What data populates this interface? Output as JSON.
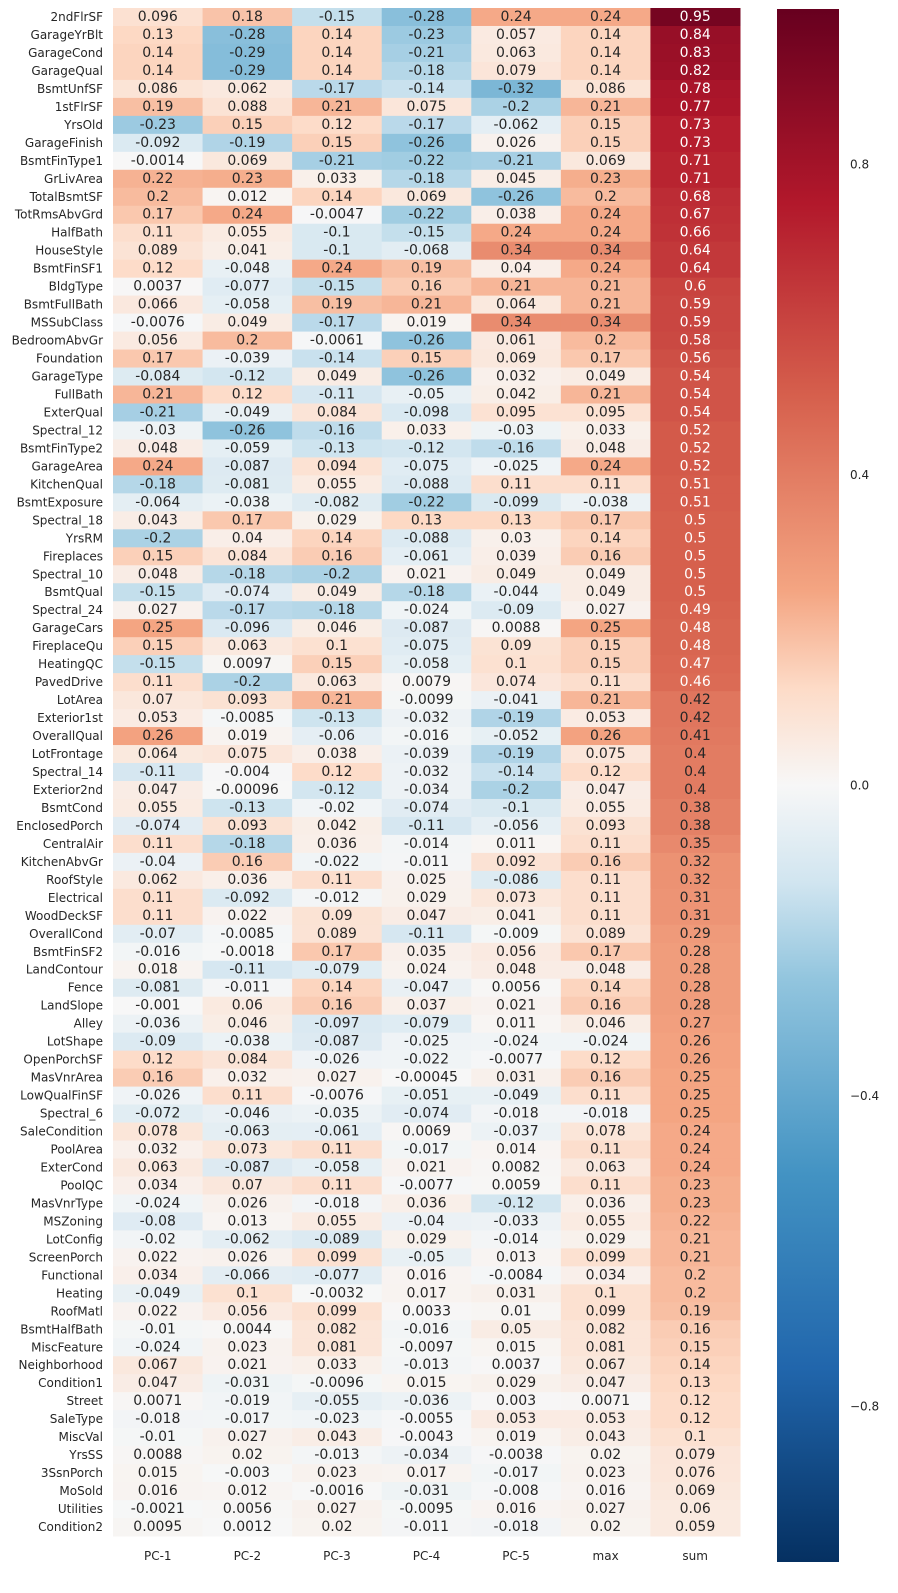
{
  "chart_data": {
    "type": "heatmap",
    "title": "",
    "xlabel": "",
    "ylabel": "",
    "columns": [
      "PC-1",
      "PC-2",
      "PC-3",
      "PC-4",
      "PC-5",
      "max",
      "sum"
    ],
    "rows": [
      {
        "label": "2ndFlrSF",
        "values": [
          "0.096",
          "0.18",
          "-0.15",
          "-0.28",
          "0.24",
          "0.24",
          "0.95"
        ]
      },
      {
        "label": "GarageYrBlt",
        "values": [
          "0.13",
          "-0.28",
          "0.14",
          "-0.23",
          "0.057",
          "0.14",
          "0.84"
        ]
      },
      {
        "label": "GarageCond",
        "values": [
          "0.14",
          "-0.29",
          "0.14",
          "-0.21",
          "0.063",
          "0.14",
          "0.83"
        ]
      },
      {
        "label": "GarageQual",
        "values": [
          "0.14",
          "-0.29",
          "0.14",
          "-0.18",
          "0.079",
          "0.14",
          "0.82"
        ]
      },
      {
        "label": "BsmtUnfSF",
        "values": [
          "0.086",
          "0.062",
          "-0.17",
          "-0.14",
          "-0.32",
          "0.086",
          "0.78"
        ]
      },
      {
        "label": "1stFlrSF",
        "values": [
          "0.19",
          "0.088",
          "0.21",
          "0.075",
          "-0.2",
          "0.21",
          "0.77"
        ]
      },
      {
        "label": "YrsOld",
        "values": [
          "-0.23",
          "0.15",
          "0.12",
          "-0.17",
          "-0.062",
          "0.15",
          "0.73"
        ]
      },
      {
        "label": "GarageFinish",
        "values": [
          "-0.092",
          "-0.19",
          "0.15",
          "-0.26",
          "0.026",
          "0.15",
          "0.73"
        ]
      },
      {
        "label": "BsmtFinType1",
        "values": [
          "-0.0014",
          "0.069",
          "-0.21",
          "-0.22",
          "-0.21",
          "0.069",
          "0.71"
        ]
      },
      {
        "label": "GrLivArea",
        "values": [
          "0.22",
          "0.23",
          "0.033",
          "-0.18",
          "0.045",
          "0.23",
          "0.71"
        ]
      },
      {
        "label": "TotalBsmtSF",
        "values": [
          "0.2",
          "0.012",
          "0.14",
          "0.069",
          "-0.26",
          "0.2",
          "0.68"
        ]
      },
      {
        "label": "TotRmsAbvGrd",
        "values": [
          "0.17",
          "0.24",
          "-0.0047",
          "-0.22",
          "0.038",
          "0.24",
          "0.67"
        ]
      },
      {
        "label": "HalfBath",
        "values": [
          "0.11",
          "0.055",
          "-0.1",
          "-0.15",
          "0.24",
          "0.24",
          "0.66"
        ]
      },
      {
        "label": "HouseStyle",
        "values": [
          "0.089",
          "0.041",
          "-0.1",
          "-0.068",
          "0.34",
          "0.34",
          "0.64"
        ]
      },
      {
        "label": "BsmtFinSF1",
        "values": [
          "0.12",
          "-0.048",
          "0.24",
          "0.19",
          "0.04",
          "0.24",
          "0.64"
        ]
      },
      {
        "label": "BldgType",
        "values": [
          "0.0037",
          "-0.077",
          "-0.15",
          "0.16",
          "0.21",
          "0.21",
          "0.6"
        ]
      },
      {
        "label": "BsmtFullBath",
        "values": [
          "0.066",
          "-0.058",
          "0.19",
          "0.21",
          "0.064",
          "0.21",
          "0.59"
        ]
      },
      {
        "label": "MSSubClass",
        "values": [
          "-0.0076",
          "0.049",
          "-0.17",
          "0.019",
          "0.34",
          "0.34",
          "0.59"
        ]
      },
      {
        "label": "BedroomAbvGr",
        "values": [
          "0.056",
          "0.2",
          "-0.0061",
          "-0.26",
          "0.061",
          "0.2",
          "0.58"
        ]
      },
      {
        "label": "Foundation",
        "values": [
          "0.17",
          "-0.039",
          "-0.14",
          "0.15",
          "0.069",
          "0.17",
          "0.56"
        ]
      },
      {
        "label": "GarageType",
        "values": [
          "-0.084",
          "-0.12",
          "0.049",
          "-0.26",
          "0.032",
          "0.049",
          "0.54"
        ]
      },
      {
        "label": "FullBath",
        "values": [
          "0.21",
          "0.12",
          "-0.11",
          "-0.05",
          "0.042",
          "0.21",
          "0.54"
        ]
      },
      {
        "label": "ExterQual",
        "values": [
          "-0.21",
          "-0.049",
          "0.084",
          "-0.098",
          "0.095",
          "0.095",
          "0.54"
        ]
      },
      {
        "label": "Spectral_12",
        "values": [
          "-0.03",
          "-0.26",
          "-0.16",
          "0.033",
          "-0.03",
          "0.033",
          "0.52"
        ]
      },
      {
        "label": "BsmtFinType2",
        "values": [
          "0.048",
          "-0.059",
          "-0.13",
          "-0.12",
          "-0.16",
          "0.048",
          "0.52"
        ]
      },
      {
        "label": "GarageArea",
        "values": [
          "0.24",
          "-0.087",
          "0.094",
          "-0.075",
          "-0.025",
          "0.24",
          "0.52"
        ]
      },
      {
        "label": "KitchenQual",
        "values": [
          "-0.18",
          "-0.081",
          "0.055",
          "-0.088",
          "0.11",
          "0.11",
          "0.51"
        ]
      },
      {
        "label": "BsmtExposure",
        "values": [
          "-0.064",
          "-0.038",
          "-0.082",
          "-0.22",
          "-0.099",
          "-0.038",
          "0.51"
        ]
      },
      {
        "label": "Spectral_18",
        "values": [
          "0.043",
          "0.17",
          "0.029",
          "0.13",
          "0.13",
          "0.17",
          "0.5"
        ]
      },
      {
        "label": "YrsRM",
        "values": [
          "-0.2",
          "0.04",
          "0.14",
          "-0.088",
          "0.03",
          "0.14",
          "0.5"
        ]
      },
      {
        "label": "Fireplaces",
        "values": [
          "0.15",
          "0.084",
          "0.16",
          "-0.061",
          "0.039",
          "0.16",
          "0.5"
        ]
      },
      {
        "label": "Spectral_10",
        "values": [
          "0.048",
          "-0.18",
          "-0.2",
          "0.021",
          "0.049",
          "0.049",
          "0.5"
        ]
      },
      {
        "label": "BsmtQual",
        "values": [
          "-0.15",
          "-0.074",
          "0.049",
          "-0.18",
          "-0.044",
          "0.049",
          "0.5"
        ]
      },
      {
        "label": "Spectral_24",
        "values": [
          "0.027",
          "-0.17",
          "-0.18",
          "-0.024",
          "-0.09",
          "0.027",
          "0.49"
        ]
      },
      {
        "label": "GarageCars",
        "values": [
          "0.25",
          "-0.096",
          "0.046",
          "-0.087",
          "0.0088",
          "0.25",
          "0.48"
        ]
      },
      {
        "label": "FireplaceQu",
        "values": [
          "0.15",
          "0.063",
          "0.1",
          "-0.075",
          "0.09",
          "0.15",
          "0.48"
        ]
      },
      {
        "label": "HeatingQC",
        "values": [
          "-0.15",
          "0.0097",
          "0.15",
          "-0.058",
          "0.1",
          "0.15",
          "0.47"
        ]
      },
      {
        "label": "PavedDrive",
        "values": [
          "0.11",
          "-0.2",
          "0.063",
          "0.0079",
          "0.074",
          "0.11",
          "0.46"
        ]
      },
      {
        "label": "LotArea",
        "values": [
          "0.07",
          "0.093",
          "0.21",
          "-0.0099",
          "-0.041",
          "0.21",
          "0.42"
        ]
      },
      {
        "label": "Exterior1st",
        "values": [
          "0.053",
          "-0.0085",
          "-0.13",
          "-0.032",
          "-0.19",
          "0.053",
          "0.42"
        ]
      },
      {
        "label": "OverallQual",
        "values": [
          "0.26",
          "0.019",
          "-0.06",
          "-0.016",
          "-0.052",
          "0.26",
          "0.41"
        ]
      },
      {
        "label": "LotFrontage",
        "values": [
          "0.064",
          "0.075",
          "0.038",
          "-0.039",
          "-0.19",
          "0.075",
          "0.4"
        ]
      },
      {
        "label": "Spectral_14",
        "values": [
          "-0.11",
          "-0.004",
          "0.12",
          "-0.032",
          "-0.14",
          "0.12",
          "0.4"
        ]
      },
      {
        "label": "Exterior2nd",
        "values": [
          "0.047",
          "-0.00096",
          "-0.12",
          "-0.034",
          "-0.2",
          "0.047",
          "0.4"
        ]
      },
      {
        "label": "BsmtCond",
        "values": [
          "0.055",
          "-0.13",
          "-0.02",
          "-0.074",
          "-0.1",
          "0.055",
          "0.38"
        ]
      },
      {
        "label": "EnclosedPorch",
        "values": [
          "-0.074",
          "0.093",
          "0.042",
          "-0.11",
          "-0.056",
          "0.093",
          "0.38"
        ]
      },
      {
        "label": "CentralAir",
        "values": [
          "0.11",
          "-0.18",
          "0.036",
          "-0.014",
          "0.011",
          "0.11",
          "0.35"
        ]
      },
      {
        "label": "KitchenAbvGr",
        "values": [
          "-0.04",
          "0.16",
          "-0.022",
          "-0.011",
          "0.092",
          "0.16",
          "0.32"
        ]
      },
      {
        "label": "RoofStyle",
        "values": [
          "0.062",
          "0.036",
          "0.11",
          "0.025",
          "-0.086",
          "0.11",
          "0.32"
        ]
      },
      {
        "label": "Electrical",
        "values": [
          "0.11",
          "-0.092",
          "-0.012",
          "0.029",
          "0.073",
          "0.11",
          "0.31"
        ]
      },
      {
        "label": "WoodDeckSF",
        "values": [
          "0.11",
          "0.022",
          "0.09",
          "0.047",
          "0.041",
          "0.11",
          "0.31"
        ]
      },
      {
        "label": "OverallCond",
        "values": [
          "-0.07",
          "-0.0085",
          "0.089",
          "-0.11",
          "-0.009",
          "0.089",
          "0.29"
        ]
      },
      {
        "label": "BsmtFinSF2",
        "values": [
          "-0.016",
          "-0.0018",
          "0.17",
          "0.035",
          "0.056",
          "0.17",
          "0.28"
        ]
      },
      {
        "label": "LandContour",
        "values": [
          "0.018",
          "-0.11",
          "-0.079",
          "0.024",
          "0.048",
          "0.048",
          "0.28"
        ]
      },
      {
        "label": "Fence",
        "values": [
          "-0.081",
          "-0.011",
          "0.14",
          "-0.047",
          "0.0056",
          "0.14",
          "0.28"
        ]
      },
      {
        "label": "LandSlope",
        "values": [
          "-0.001",
          "0.06",
          "0.16",
          "0.037",
          "0.021",
          "0.16",
          "0.28"
        ]
      },
      {
        "label": "Alley",
        "values": [
          "-0.036",
          "0.046",
          "-0.097",
          "-0.079",
          "0.011",
          "0.046",
          "0.27"
        ]
      },
      {
        "label": "LotShape",
        "values": [
          "-0.09",
          "-0.038",
          "-0.087",
          "-0.025",
          "-0.024",
          "-0.024",
          "0.26"
        ]
      },
      {
        "label": "OpenPorchSF",
        "values": [
          "0.12",
          "0.084",
          "-0.026",
          "-0.022",
          "-0.0077",
          "0.12",
          "0.26"
        ]
      },
      {
        "label": "MasVnrArea",
        "values": [
          "0.16",
          "0.032",
          "0.027",
          "-0.00045",
          "0.031",
          "0.16",
          "0.25"
        ]
      },
      {
        "label": "LowQualFinSF",
        "values": [
          "-0.026",
          "0.11",
          "-0.0076",
          "-0.051",
          "-0.049",
          "0.11",
          "0.25"
        ]
      },
      {
        "label": "Spectral_6",
        "values": [
          "-0.072",
          "-0.046",
          "-0.035",
          "-0.074",
          "-0.018",
          "-0.018",
          "0.25"
        ]
      },
      {
        "label": "SaleCondition",
        "values": [
          "0.078",
          "-0.063",
          "-0.061",
          "0.0069",
          "-0.037",
          "0.078",
          "0.24"
        ]
      },
      {
        "label": "PoolArea",
        "values": [
          "0.032",
          "0.073",
          "0.11",
          "-0.017",
          "0.014",
          "0.11",
          "0.24"
        ]
      },
      {
        "label": "ExterCond",
        "values": [
          "0.063",
          "-0.087",
          "-0.058",
          "0.021",
          "0.0082",
          "0.063",
          "0.24"
        ]
      },
      {
        "label": "PoolQC",
        "values": [
          "0.034",
          "0.07",
          "0.11",
          "-0.0077",
          "0.0059",
          "0.11",
          "0.23"
        ]
      },
      {
        "label": "MasVnrType",
        "values": [
          "-0.024",
          "0.026",
          "-0.018",
          "0.036",
          "-0.12",
          "0.036",
          "0.23"
        ]
      },
      {
        "label": "MSZoning",
        "values": [
          "-0.08",
          "0.013",
          "0.055",
          "-0.04",
          "-0.033",
          "0.055",
          "0.22"
        ]
      },
      {
        "label": "LotConfig",
        "values": [
          "-0.02",
          "-0.062",
          "-0.089",
          "0.029",
          "-0.014",
          "0.029",
          "0.21"
        ]
      },
      {
        "label": "ScreenPorch",
        "values": [
          "0.022",
          "0.026",
          "0.099",
          "-0.05",
          "0.013",
          "0.099",
          "0.21"
        ]
      },
      {
        "label": "Functional",
        "values": [
          "0.034",
          "-0.066",
          "-0.077",
          "0.016",
          "-0.0084",
          "0.034",
          "0.2"
        ]
      },
      {
        "label": "Heating",
        "values": [
          "-0.049",
          "0.1",
          "-0.0032",
          "0.017",
          "0.031",
          "0.1",
          "0.2"
        ]
      },
      {
        "label": "RoofMatl",
        "values": [
          "0.022",
          "0.056",
          "0.099",
          "0.0033",
          "0.01",
          "0.099",
          "0.19"
        ]
      },
      {
        "label": "BsmtHalfBath",
        "values": [
          "-0.01",
          "0.0044",
          "0.082",
          "-0.016",
          "0.05",
          "0.082",
          "0.16"
        ]
      },
      {
        "label": "MiscFeature",
        "values": [
          "-0.024",
          "0.023",
          "0.081",
          "-0.0097",
          "0.015",
          "0.081",
          "0.15"
        ]
      },
      {
        "label": "Neighborhood",
        "values": [
          "0.067",
          "0.021",
          "0.033",
          "-0.013",
          "0.0037",
          "0.067",
          "0.14"
        ]
      },
      {
        "label": "Condition1",
        "values": [
          "0.047",
          "-0.031",
          "-0.0096",
          "0.015",
          "0.029",
          "0.047",
          "0.13"
        ]
      },
      {
        "label": "Street",
        "values": [
          "0.0071",
          "-0.019",
          "-0.055",
          "-0.036",
          "0.003",
          "0.0071",
          "0.12"
        ]
      },
      {
        "label": "SaleType",
        "values": [
          "-0.018",
          "-0.017",
          "-0.023",
          "-0.0055",
          "0.053",
          "0.053",
          "0.12"
        ]
      },
      {
        "label": "MiscVal",
        "values": [
          "-0.01",
          "0.027",
          "0.043",
          "-0.0043",
          "0.019",
          "0.043",
          "0.1"
        ]
      },
      {
        "label": "YrsSS",
        "values": [
          "0.0088",
          "0.02",
          "-0.013",
          "-0.034",
          "-0.0038",
          "0.02",
          "0.079"
        ]
      },
      {
        "label": "3SsnPorch",
        "values": [
          "0.015",
          "-0.003",
          "0.023",
          "0.017",
          "-0.017",
          "0.023",
          "0.076"
        ]
      },
      {
        "label": "MoSold",
        "values": [
          "0.016",
          "0.012",
          "-0.0016",
          "-0.031",
          "-0.008",
          "0.016",
          "0.069"
        ]
      },
      {
        "label": "Utilities",
        "values": [
          "-0.0021",
          "0.0056",
          "0.027",
          "-0.0095",
          "0.016",
          "0.027",
          "0.06"
        ]
      },
      {
        "label": "Condition2",
        "values": [
          "0.0095",
          "0.0012",
          "0.02",
          "-0.011",
          "-0.018",
          "0.02",
          "0.059"
        ]
      }
    ],
    "colorscale": {
      "name": "RdBu_r",
      "vmin": -1,
      "vmax": 1,
      "stops": [
        {
          "v": -1.0,
          "color": "#053061"
        },
        {
          "v": -0.75,
          "color": "#2166ac"
        },
        {
          "v": -0.5,
          "color": "#4393c3"
        },
        {
          "v": -0.25,
          "color": "#92c5de"
        },
        {
          "v": -0.125,
          "color": "#d1e5f0"
        },
        {
          "v": 0.0,
          "color": "#f7f7f7"
        },
        {
          "v": 0.125,
          "color": "#fddbc7"
        },
        {
          "v": 0.25,
          "color": "#f4a582"
        },
        {
          "v": 0.5,
          "color": "#d6604d"
        },
        {
          "v": 0.75,
          "color": "#b2182b"
        },
        {
          "v": 1.0,
          "color": "#67001f"
        }
      ]
    },
    "colorbar": {
      "ticks": [
        {
          "value": 0.8,
          "label": "0.8"
        },
        {
          "value": 0.4,
          "label": "0.4"
        },
        {
          "value": 0.0,
          "label": "0.0"
        },
        {
          "value": -0.4,
          "label": "−0.4"
        },
        {
          "value": -0.8,
          "label": "−0.8"
        }
      ]
    },
    "grid": false,
    "legend": "colorbar-right"
  }
}
